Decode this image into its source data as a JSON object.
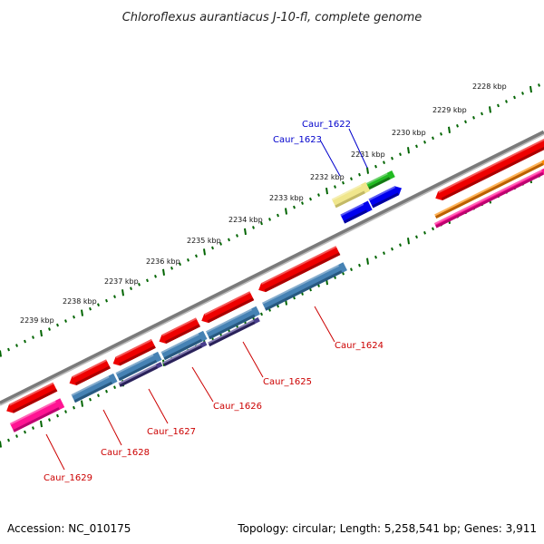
{
  "title": "Chloroflexus aurantiacus J-10-fl, complete genome",
  "footer": {
    "accession": "Accession: NC_010175",
    "summary": "Topology: circular; Length: 5,258,541 bp; Genes: 3,911"
  },
  "ticks": [
    "2228 kbp",
    "2229 kbp",
    "2230 kbp",
    "2231 kbp",
    "2232 kbp",
    "2233 kbp",
    "2234 kbp",
    "2235 kbp",
    "2236 kbp",
    "2237 kbp",
    "2238 kbp",
    "2239 kbp"
  ],
  "genes": [
    "Caur_1622",
    "Caur_1623",
    "Caur_1624",
    "Caur_1625",
    "Caur_1626",
    "Caur_1627",
    "Caur_1628",
    "Caur_1629"
  ],
  "colors": {
    "backbone": "#7a7a7a",
    "gene_red": "#ee0000",
    "cds_blue": "#4682b4",
    "cds_purple": "#483d8b",
    "pink": "#ff1493",
    "orange": "#ff8c00",
    "green": "#22bb22",
    "khaki": "#f0e68c",
    "blue": "#0000ee",
    "tick_green": "#006400"
  }
}
